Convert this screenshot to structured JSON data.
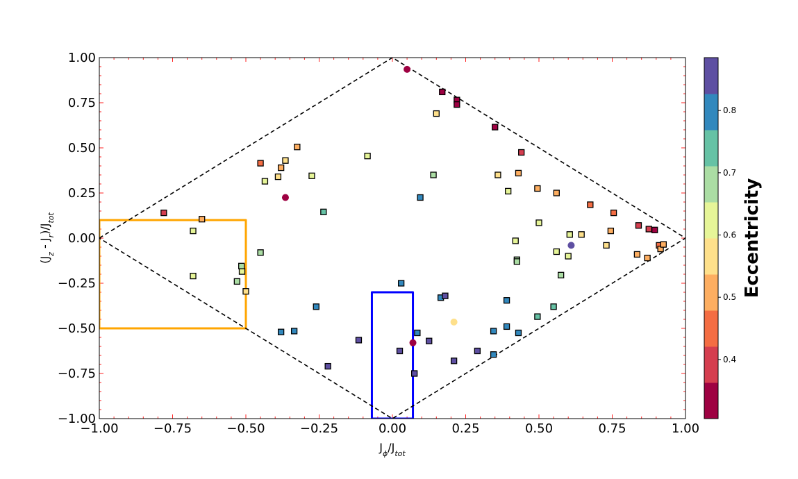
{
  "chart_data": {
    "type": "scatter",
    "xlabel": "Jϕ/Jtot",
    "ylabel": "(Jz - Jr)/Jtot",
    "xlim": [
      -1.0,
      1.0
    ],
    "ylim": [
      -1.0,
      1.0
    ],
    "x_ticks": [
      "−1.00",
      "−0.75",
      "−0.50",
      "−0.25",
      "0.00",
      "0.25",
      "0.50",
      "0.75",
      "1.00"
    ],
    "x_tick_values": [
      -1.0,
      -0.75,
      -0.5,
      -0.25,
      0.0,
      0.25,
      0.5,
      0.75,
      1.0
    ],
    "y_ticks": [
      "−1.00",
      "−0.75",
      "−0.50",
      "−0.25",
      "0.00",
      "0.25",
      "0.50",
      "0.75",
      "1.00"
    ],
    "y_tick_values": [
      -1.0,
      -0.75,
      -0.5,
      -0.25,
      0.0,
      0.25,
      0.5,
      0.75,
      1.0
    ],
    "grid": false,
    "colorbar": {
      "label": "Eccentricity",
      "range": [
        0.305,
        0.885
      ],
      "tick_values": [
        0.4,
        0.5,
        0.6,
        0.7,
        0.8
      ],
      "tick_labels": [
        "0.4",
        "0.5",
        "0.6",
        "0.7",
        "0.8"
      ],
      "colors": [
        "#9e0142",
        "#d53e4f",
        "#f46d43",
        "#fdae61",
        "#fee08b",
        "#e6f598",
        "#abdda4",
        "#66c2a5",
        "#3288bd",
        "#5e4fa2"
      ]
    },
    "boundary_diamond": [
      [
        -1,
        0
      ],
      [
        0,
        1
      ],
      [
        1,
        0
      ],
      [
        0,
        -1
      ],
      [
        -1,
        0
      ]
    ],
    "highlight_regions": [
      {
        "color": "#ffa500",
        "points": [
          [
            -1.0,
            0.1
          ],
          [
            -0.5,
            0.1
          ],
          [
            -0.5,
            -0.5
          ],
          [
            -1.0,
            -0.5
          ]
        ]
      },
      {
        "color": "#0000ff",
        "points": [
          [
            -0.07,
            -0.3
          ],
          [
            0.07,
            -0.3
          ],
          [
            0.07,
            -1.0
          ],
          [
            -0.07,
            -1.0
          ]
        ]
      }
    ],
    "series": [
      {
        "marker": "square",
        "points": [
          {
            "x": -0.78,
            "y": 0.14,
            "e": 0.42
          },
          {
            "x": -0.68,
            "y": 0.04,
            "e": 0.63
          },
          {
            "x": -0.65,
            "y": 0.105,
            "e": 0.52
          },
          {
            "x": -0.68,
            "y": -0.21,
            "e": 0.64
          },
          {
            "x": -0.53,
            "y": -0.24,
            "e": 0.68
          },
          {
            "x": -0.515,
            "y": -0.155,
            "e": 0.67
          },
          {
            "x": -0.513,
            "y": -0.185,
            "e": 0.65
          },
          {
            "x": -0.5,
            "y": -0.295,
            "e": 0.55
          },
          {
            "x": -0.45,
            "y": 0.415,
            "e": 0.46
          },
          {
            "x": -0.45,
            "y": -0.08,
            "e": 0.67
          },
          {
            "x": -0.435,
            "y": 0.315,
            "e": 0.63
          },
          {
            "x": -0.39,
            "y": 0.34,
            "e": 0.57
          },
          {
            "x": -0.38,
            "y": 0.39,
            "e": 0.53
          },
          {
            "x": -0.365,
            "y": 0.43,
            "e": 0.57
          },
          {
            "x": -0.325,
            "y": 0.505,
            "e": 0.51
          },
          {
            "x": -0.275,
            "y": 0.345,
            "e": 0.61
          },
          {
            "x": -0.235,
            "y": 0.145,
            "e": 0.73
          },
          {
            "x": -0.38,
            "y": -0.52,
            "e": 0.81
          },
          {
            "x": -0.335,
            "y": -0.515,
            "e": 0.81
          },
          {
            "x": -0.26,
            "y": -0.38,
            "e": 0.81
          },
          {
            "x": -0.22,
            "y": -0.71,
            "e": 0.87
          },
          {
            "x": -0.115,
            "y": -0.565,
            "e": 0.87
          },
          {
            "x": -0.085,
            "y": 0.455,
            "e": 0.63
          },
          {
            "x": 0.025,
            "y": -0.625,
            "e": 0.87
          },
          {
            "x": 0.03,
            "y": -0.25,
            "e": 0.81
          },
          {
            "x": 0.075,
            "y": -0.75,
            "e": 0.87
          },
          {
            "x": 0.085,
            "y": -0.525,
            "e": 0.81
          },
          {
            "x": 0.095,
            "y": 0.225,
            "e": 0.81
          },
          {
            "x": 0.125,
            "y": -0.57,
            "e": 0.87
          },
          {
            "x": 0.14,
            "y": 0.35,
            "e": 0.69
          },
          {
            "x": 0.15,
            "y": 0.69,
            "e": 0.55
          },
          {
            "x": 0.165,
            "y": -0.33,
            "e": 0.81
          },
          {
            "x": 0.17,
            "y": 0.81,
            "e": 0.32
          },
          {
            "x": 0.18,
            "y": -0.32,
            "e": 0.87
          },
          {
            "x": 0.21,
            "y": -0.68,
            "e": 0.87
          },
          {
            "x": 0.22,
            "y": 0.765,
            "e": 0.32
          },
          {
            "x": 0.22,
            "y": 0.74,
            "e": 0.32
          },
          {
            "x": 0.29,
            "y": -0.625,
            "e": 0.87
          },
          {
            "x": 0.345,
            "y": -0.515,
            "e": 0.81
          },
          {
            "x": 0.345,
            "y": -0.645,
            "e": 0.81
          },
          {
            "x": 0.35,
            "y": 0.615,
            "e": 0.32
          },
          {
            "x": 0.36,
            "y": 0.35,
            "e": 0.57
          },
          {
            "x": 0.39,
            "y": -0.49,
            "e": 0.81
          },
          {
            "x": 0.39,
            "y": -0.345,
            "e": 0.81
          },
          {
            "x": 0.395,
            "y": 0.26,
            "e": 0.61
          },
          {
            "x": 0.42,
            "y": -0.015,
            "e": 0.63
          },
          {
            "x": 0.425,
            "y": -0.12,
            "e": 0.69
          },
          {
            "x": 0.425,
            "y": -0.13,
            "e": 0.69
          },
          {
            "x": 0.43,
            "y": -0.525,
            "e": 0.81
          },
          {
            "x": 0.43,
            "y": 0.36,
            "e": 0.51
          },
          {
            "x": 0.44,
            "y": 0.475,
            "e": 0.42
          },
          {
            "x": 0.495,
            "y": 0.275,
            "e": 0.53
          },
          {
            "x": 0.495,
            "y": -0.435,
            "e": 0.73
          },
          {
            "x": 0.5,
            "y": 0.085,
            "e": 0.63
          },
          {
            "x": 0.55,
            "y": -0.38,
            "e": 0.73
          },
          {
            "x": 0.56,
            "y": -0.075,
            "e": 0.61
          },
          {
            "x": 0.56,
            "y": 0.25,
            "e": 0.51
          },
          {
            "x": 0.575,
            "y": -0.205,
            "e": 0.67
          },
          {
            "x": 0.6,
            "y": -0.1,
            "e": 0.61
          },
          {
            "x": 0.605,
            "y": 0.02,
            "e": 0.61
          },
          {
            "x": 0.645,
            "y": 0.02,
            "e": 0.57
          },
          {
            "x": 0.675,
            "y": 0.185,
            "e": 0.46
          },
          {
            "x": 0.73,
            "y": -0.04,
            "e": 0.59
          },
          {
            "x": 0.745,
            "y": 0.04,
            "e": 0.53
          },
          {
            "x": 0.755,
            "y": 0.14,
            "e": 0.46
          },
          {
            "x": 0.835,
            "y": -0.09,
            "e": 0.51
          },
          {
            "x": 0.84,
            "y": 0.07,
            "e": 0.42
          },
          {
            "x": 0.87,
            "y": -0.11,
            "e": 0.51
          },
          {
            "x": 0.875,
            "y": 0.05,
            "e": 0.38
          },
          {
            "x": 0.895,
            "y": 0.045,
            "e": 0.32
          },
          {
            "x": 0.91,
            "y": -0.04,
            "e": 0.46
          },
          {
            "x": 0.915,
            "y": -0.06,
            "e": 0.51
          },
          {
            "x": 0.925,
            "y": -0.035,
            "e": 0.51
          }
        ]
      },
      {
        "marker": "circle",
        "points": [
          {
            "x": 0.05,
            "y": 0.935,
            "e": 0.32
          },
          {
            "x": -0.365,
            "y": 0.225,
            "e": 0.32
          },
          {
            "x": 0.07,
            "y": -0.58,
            "e": 0.32
          },
          {
            "x": 0.21,
            "y": -0.465,
            "e": 0.57
          },
          {
            "x": 0.61,
            "y": -0.04,
            "e": 0.87
          }
        ]
      }
    ]
  }
}
